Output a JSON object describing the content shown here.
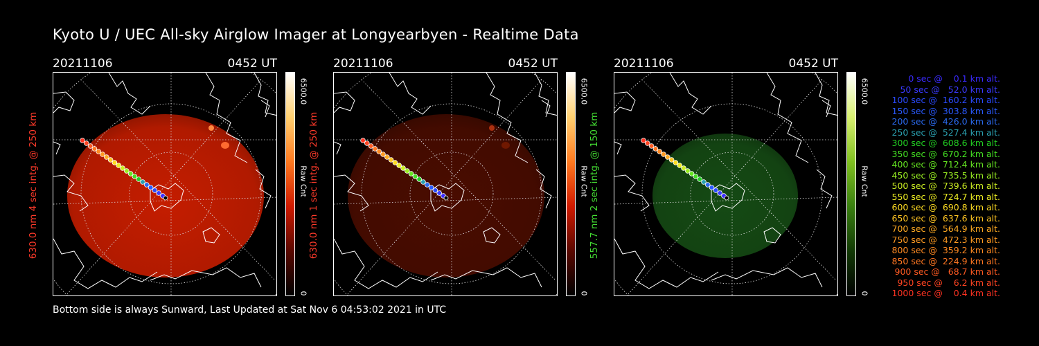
{
  "title": "Kyoto U / UEC All-sky Airglow Imager at Longyearbyen - Realtime Data",
  "footer": "Bottom side is always Sunward, Last Updated at Sat Nov  6 04:53:02 2021 in UTC",
  "panels": [
    {
      "date": "20211106",
      "time": "0452 UT",
      "ylabel": "630.0 nm 4 sec intg. @ 250 km",
      "ylabel_color": "#ff3a2a",
      "colorbar_max": "6500.0",
      "colorbar_min": "0",
      "colorbar_unit": "Raw Cnt",
      "colorbar_gradient": [
        "#ffffff",
        "#ffd070",
        "#ff7a20",
        "#d01a00",
        "#5a0800",
        "#000000"
      ],
      "glow_color": "#c41d00",
      "glow_opacity": 0.95
    },
    {
      "date": "20211106",
      "time": "0452 UT",
      "ylabel": "630.0 nm 1 sec intg. @ 250 km",
      "ylabel_color": "#ff3a2a",
      "colorbar_max": "6500.0",
      "colorbar_min": "0",
      "colorbar_unit": "Raw Cnt",
      "colorbar_gradient": [
        "#ffffff",
        "#ffd070",
        "#ff7a20",
        "#d01a00",
        "#5a0800",
        "#000000"
      ],
      "glow_color": "#4a0c00",
      "glow_opacity": 0.95
    },
    {
      "date": "20211106",
      "time": "0452 UT",
      "ylabel": "557.7 nm 2 sec intg. @ 150 km",
      "ylabel_color": "#44dd33",
      "colorbar_max": "6500.0",
      "colorbar_min": "0",
      "colorbar_unit": "Raw Cnt",
      "colorbar_gradient": [
        "#ffffff",
        "#d8f070",
        "#80c020",
        "#3a8010",
        "#123a05",
        "#000000"
      ],
      "glow_color": "#154a14",
      "glow_opacity": 0.95
    }
  ],
  "legend": [
    {
      "text": "   0 sec @    0.1 km alt.",
      "color": "#3a2aff"
    },
    {
      "text": "  50 sec @   52.0 km alt.",
      "color": "#3a3aff"
    },
    {
      "text": " 100 sec @  160.2 km alt.",
      "color": "#2a4aff"
    },
    {
      "text": " 150 sec @  303.8 km alt.",
      "color": "#2a5aff"
    },
    {
      "text": " 200 sec @  426.0 km alt.",
      "color": "#2a6aee"
    },
    {
      "text": " 250 sec @  527.4 km alt.",
      "color": "#2aa0b0"
    },
    {
      "text": " 300 sec @  608.6 km alt.",
      "color": "#22d022"
    },
    {
      "text": " 350 sec @  670.2 km alt.",
      "color": "#44e022"
    },
    {
      "text": " 400 sec @  712.4 km alt.",
      "color": "#66e622"
    },
    {
      "text": " 450 sec @  735.5 km alt.",
      "color": "#99ee22"
    },
    {
      "text": " 500 sec @  739.6 km alt.",
      "color": "#ccee22"
    },
    {
      "text": " 550 sec @  724.7 km alt.",
      "color": "#eeee22"
    },
    {
      "text": " 600 sec @  690.8 km alt.",
      "color": "#ffdd22"
    },
    {
      "text": " 650 sec @  637.6 km alt.",
      "color": "#ffc422"
    },
    {
      "text": " 700 sec @  564.9 km alt.",
      "color": "#ffaa22"
    },
    {
      "text": " 750 sec @  472.3 km alt.",
      "color": "#ff9a22"
    },
    {
      "text": " 800 sec @  359.2 km alt.",
      "color": "#ff8a22"
    },
    {
      "text": " 850 sec @  224.9 km alt.",
      "color": "#ff7722"
    },
    {
      "text": " 900 sec @   68.7 km alt.",
      "color": "#ff5a22"
    },
    {
      "text": " 950 sec @    6.2 km alt.",
      "color": "#ff4422"
    },
    {
      "text": "1000 sec @    0.4 km alt.",
      "color": "#ff3322"
    }
  ]
}
